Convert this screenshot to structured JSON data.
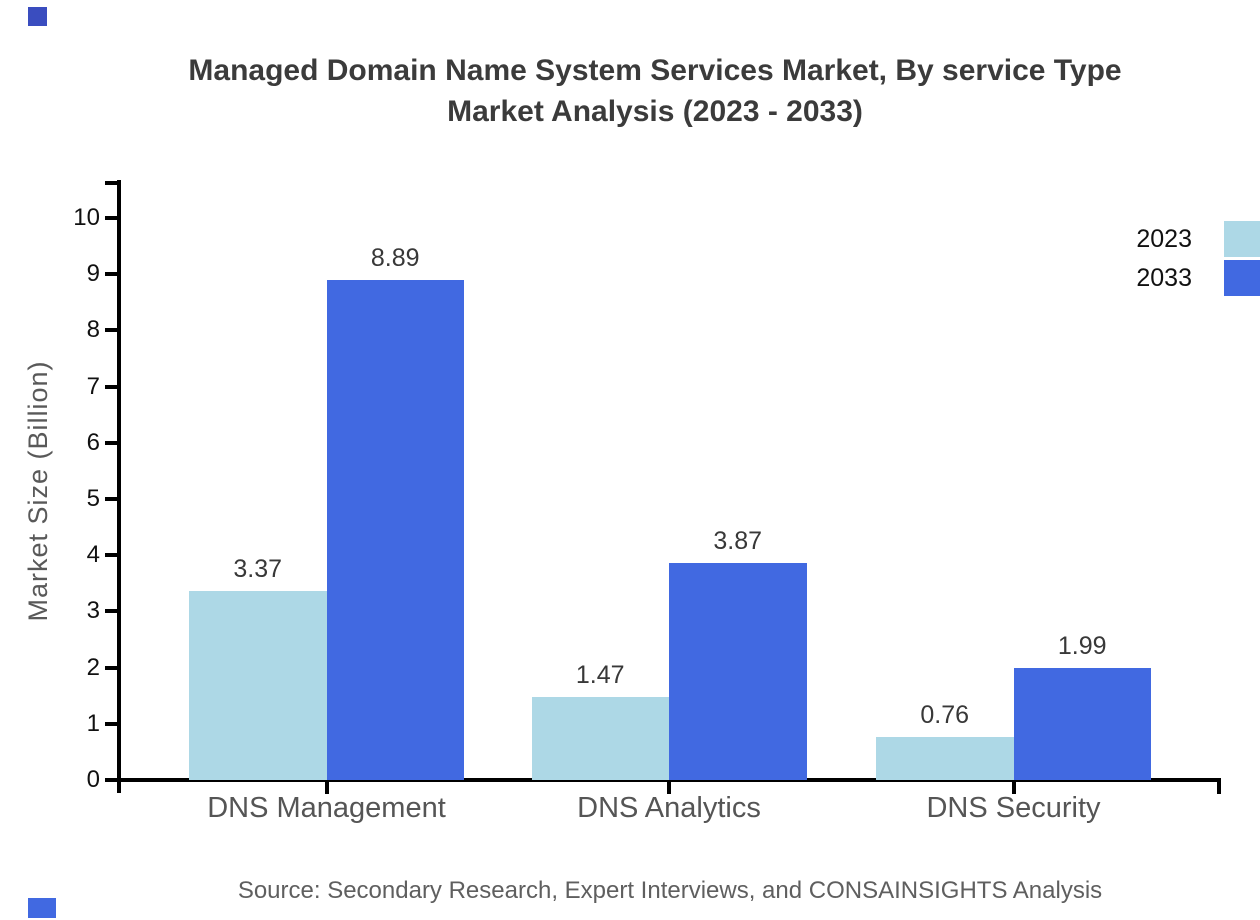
{
  "title": {
    "line1": "Managed Domain Name System Services Market, By service Type",
    "line2": "Market Analysis (2023 - 2033)"
  },
  "source_note": "Source: Secondary Research, Expert Interviews, and CONSAINSIGHTS Analysis",
  "legend": [
    {
      "label": "2023",
      "color": "#ADD8E6"
    },
    {
      "label": "2033",
      "color": "#4169E1"
    }
  ],
  "colors": {
    "series_2023": "#ADD8E6",
    "series_2033": "#4169E1",
    "axis": "#000000",
    "title_text": "#3b3b3b",
    "muted_text": "#595959",
    "brand_mark_top": "#3a4dbf",
    "brand_mark_bottom": "#4169E1"
  },
  "chart_data": {
    "type": "bar",
    "title": "Managed Domain Name System Services Market, By service Type Market Analysis (2023 - 2033)",
    "categories": [
      "DNS Management",
      "DNS Analytics",
      "DNS Security"
    ],
    "series": [
      {
        "name": "2023",
        "color": "#ADD8E6",
        "values": [
          3.37,
          1.47,
          0.76
        ]
      },
      {
        "name": "2033",
        "color": "#4169E1",
        "values": [
          8.89,
          3.87,
          1.99
        ]
      }
    ],
    "xlabel": "",
    "ylabel": "Market Size (Billion)",
    "ylim": [
      0,
      10
    ],
    "yticks": [
      0,
      1,
      2,
      3,
      4,
      5,
      6,
      7,
      8,
      9,
      10
    ],
    "grid": false,
    "legend_position": "top-right",
    "value_label_decimals": 2,
    "source": "Source: Secondary Research, Expert Interviews, and CONSAINSIGHTS Analysis"
  }
}
